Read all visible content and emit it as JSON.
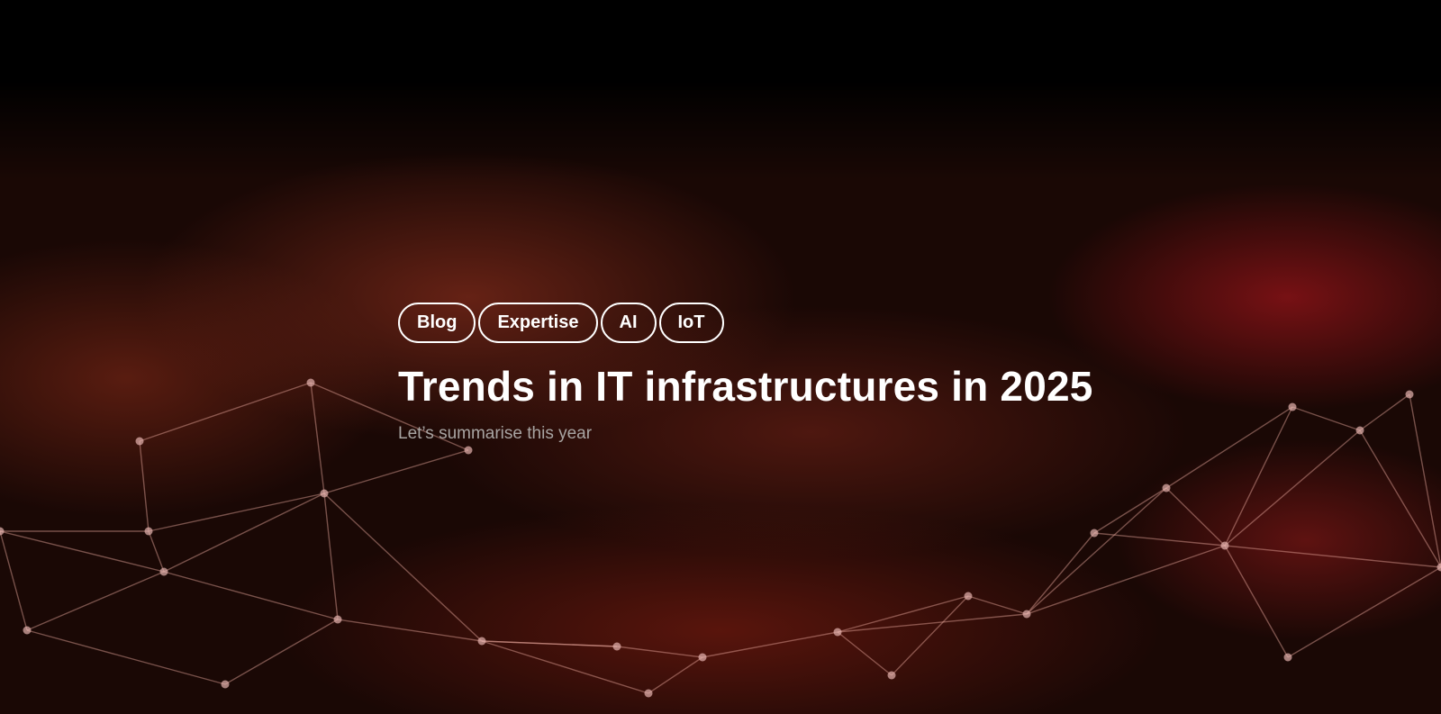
{
  "hero": {
    "tags": [
      "Blog",
      "Expertise",
      "AI",
      "IoT"
    ],
    "title": "Trends in IT infrastructures in 2025",
    "subtitle": "Let’s summarise this year"
  },
  "colors": {
    "background": "#000000",
    "accent_red": "#8c1c1c",
    "text": "#ffffff",
    "subtitle": "#a8a4a2"
  }
}
